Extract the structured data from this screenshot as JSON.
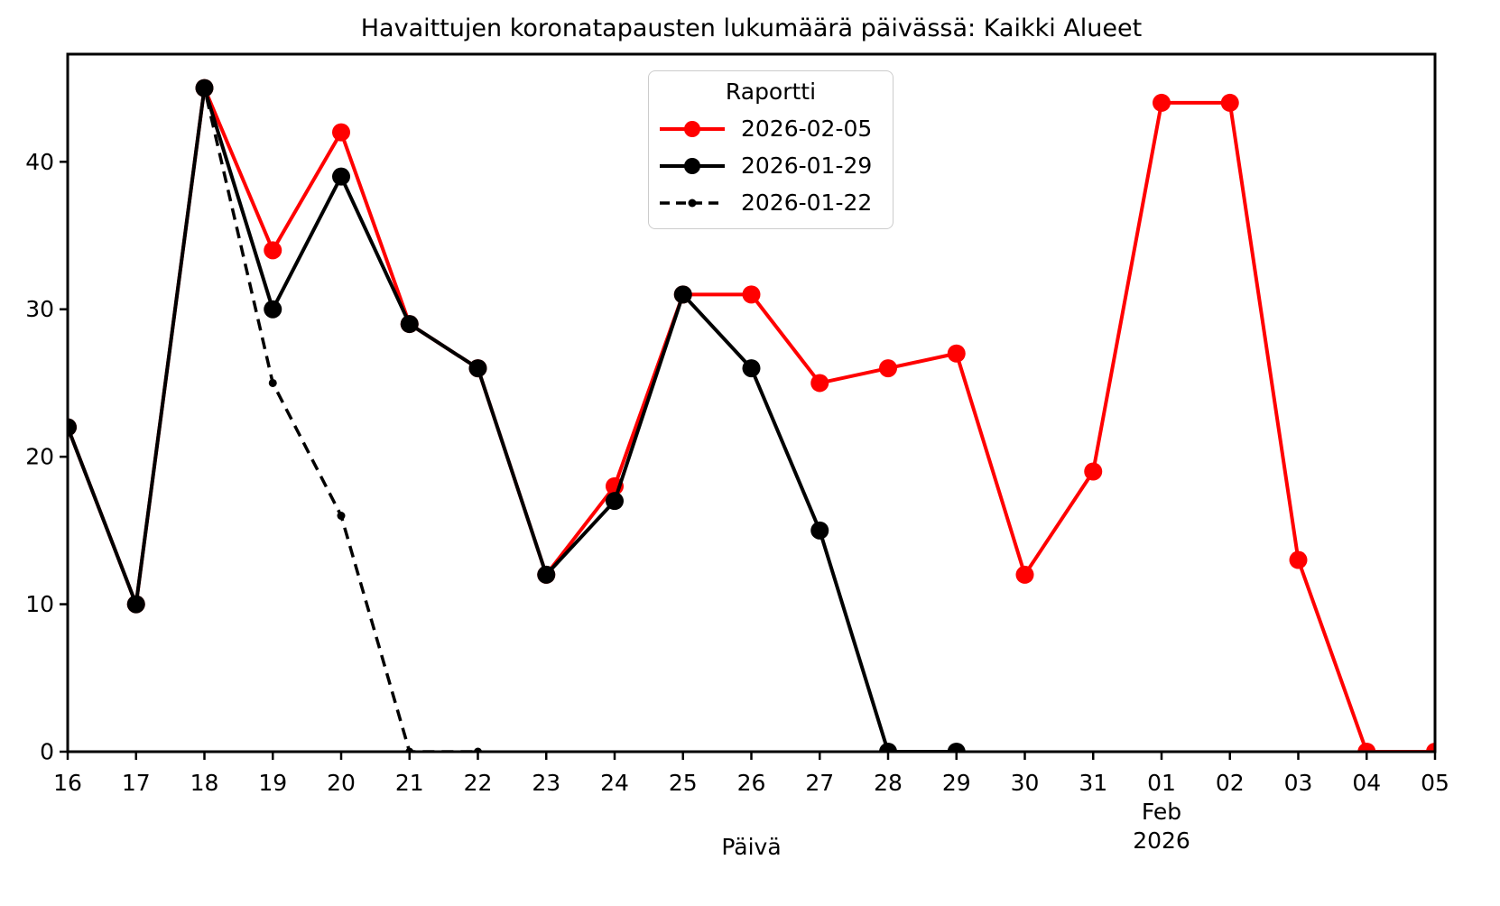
{
  "chart_data": {
    "type": "line",
    "title": "Havaittujen koronatapausten lukumäärä päivässä: Kaikki Alueet",
    "xlabel": "Päivä",
    "ylabel": "",
    "legend_title": "Raportti",
    "legend_position": "upper center",
    "grid": false,
    "ylim": [
      0,
      47.3
    ],
    "yticks": [
      0,
      10,
      20,
      30,
      40
    ],
    "x_categories": [
      "16",
      "17",
      "18",
      "19",
      "20",
      "21",
      "22",
      "23",
      "24",
      "25",
      "26",
      "27",
      "28",
      "29",
      "30",
      "31",
      "01",
      "02",
      "03",
      "04",
      "05"
    ],
    "x_sublabel": {
      "index": 16,
      "lines": [
        "Feb",
        "2026"
      ]
    },
    "series": [
      {
        "name": "2026-02-05",
        "color": "#ff0000",
        "style": "solid",
        "marker": "circle",
        "values": [
          22,
          10,
          45,
          34,
          42,
          29,
          26,
          12,
          18,
          31,
          31,
          25,
          26,
          27,
          12,
          19,
          44,
          44,
          13,
          0,
          0
        ]
      },
      {
        "name": "2026-01-29",
        "color": "#000000",
        "style": "solid",
        "marker": "circle",
        "values": [
          22,
          10,
          45,
          30,
          39,
          29,
          26,
          12,
          17,
          31,
          26,
          15,
          0,
          0
        ]
      },
      {
        "name": "2026-01-22",
        "color": "#000000",
        "style": "dashed",
        "marker": "circle-small",
        "values": [
          22,
          10,
          45,
          25,
          16,
          0,
          0
        ]
      }
    ]
  }
}
